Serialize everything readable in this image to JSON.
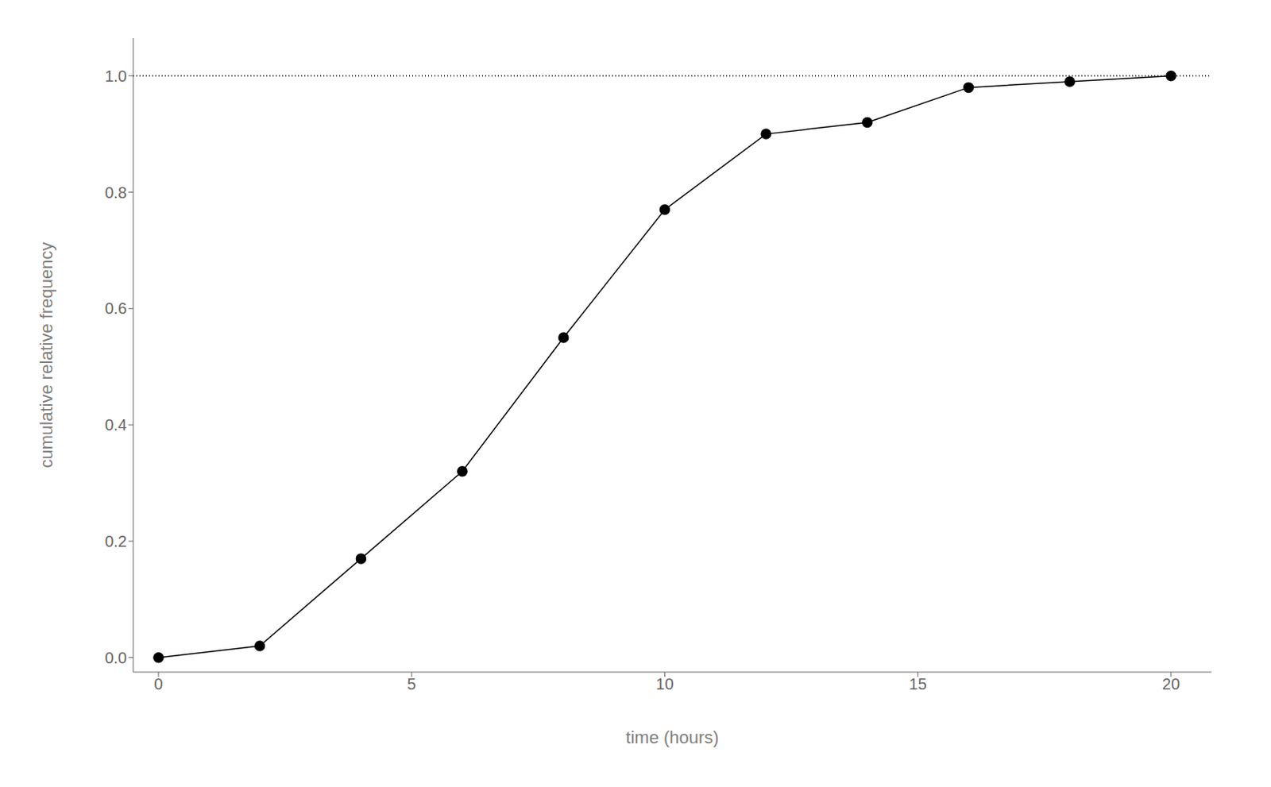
{
  "chart_data": {
    "type": "line",
    "x": [
      0,
      2,
      4,
      6,
      8,
      10,
      12,
      14,
      16,
      18,
      20
    ],
    "values": [
      0.0,
      0.02,
      0.17,
      0.32,
      0.55,
      0.77,
      0.9,
      0.92,
      0.98,
      0.99,
      1.0
    ],
    "xlabel": "time (hours)",
    "ylabel": "cumulative relative frequency",
    "xlim": [
      -0.5,
      20.8
    ],
    "ylim": [
      -0.025,
      1.065
    ],
    "xticks": [
      0,
      5,
      10,
      15,
      20
    ],
    "yticks": [
      {
        "value": 0,
        "label": "0.0"
      },
      0.2,
      0.4,
      0.6,
      0.8,
      {
        "value": 1,
        "label": "1.0"
      }
    ],
    "color": "#000000",
    "marker": "circle",
    "line_style": "solid",
    "grid": false,
    "reference_line": {
      "y": 1.0,
      "line_style": "dotted"
    }
  }
}
